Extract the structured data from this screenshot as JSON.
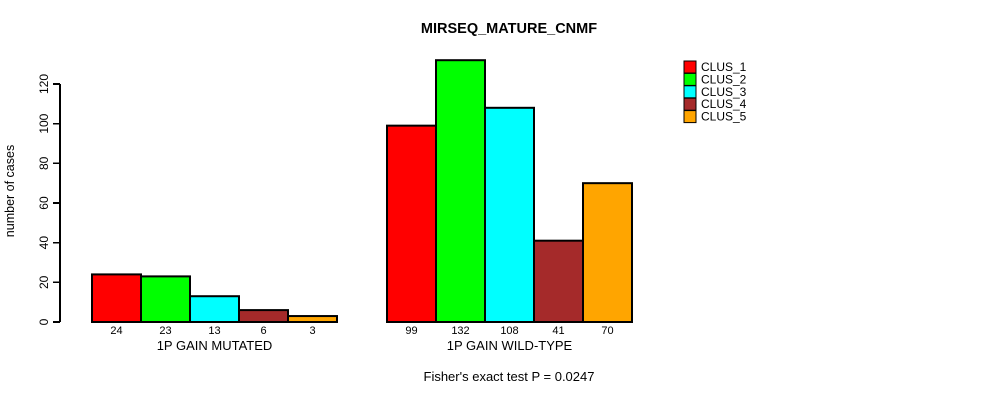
{
  "chart_data": {
    "type": "bar",
    "title": "MIRSEQ_MATURE_CNMF",
    "ylabel": "number of cases",
    "xlabel": "",
    "yticks": [
      0,
      20,
      40,
      60,
      80,
      100,
      120
    ],
    "ylim": [
      0,
      132
    ],
    "grid": false,
    "legend_position": "top-right",
    "clusters": [
      {
        "name": "CLUS_1",
        "color": "#FF0000"
      },
      {
        "name": "CLUS_2",
        "color": "#00FF00"
      },
      {
        "name": "CLUS_3",
        "color": "#00FFFF"
      },
      {
        "name": "CLUS_4",
        "color": "#A52A2A"
      },
      {
        "name": "CLUS_5",
        "color": "#FFA500"
      }
    ],
    "groups": [
      {
        "label": "1P GAIN MUTATED",
        "values": [
          24,
          23,
          13,
          6,
          3
        ]
      },
      {
        "label": "1P GAIN WILD-TYPE",
        "values": [
          99,
          132,
          108,
          41,
          70
        ]
      }
    ],
    "footnote": "Fisher's exact test P = 0.0247"
  }
}
